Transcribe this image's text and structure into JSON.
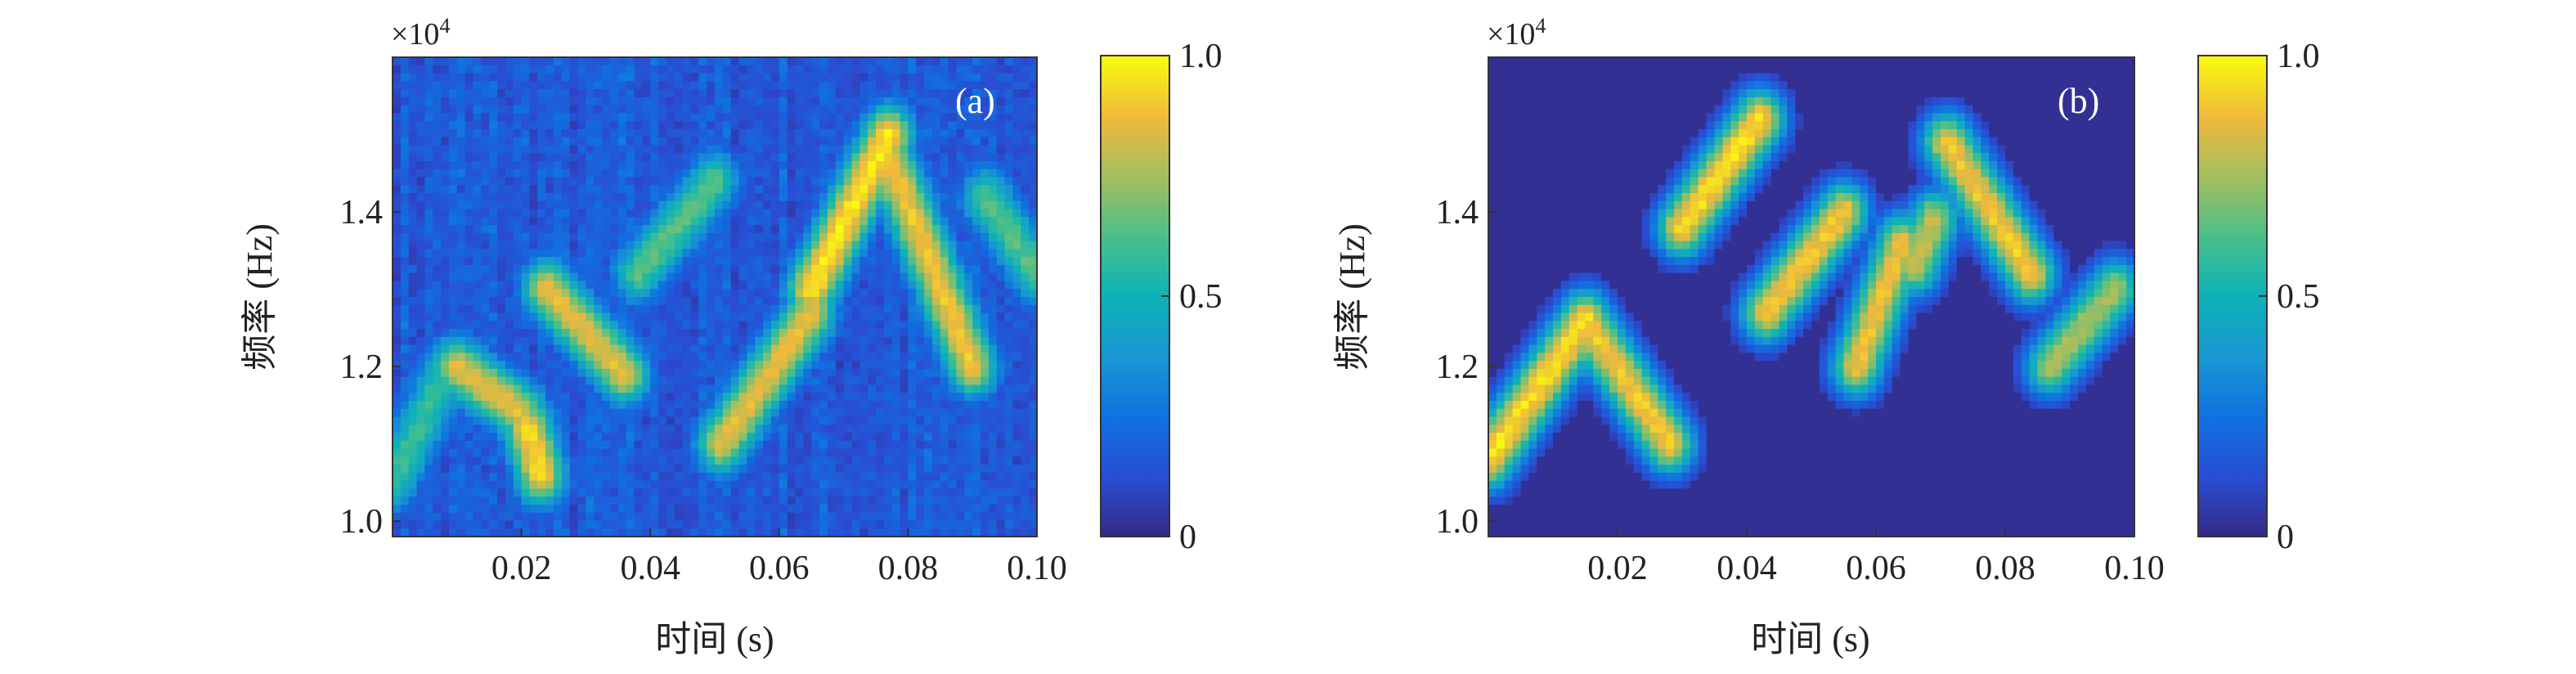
{
  "chart_data": [
    {
      "type": "heatmap",
      "panel_label": "(a)",
      "xlabel": "时间 (s)",
      "ylabel": "频率 (Hz)",
      "y_exponent_label": "×10",
      "y_exponent_power": "4",
      "xlim": [
        0.0,
        0.1
      ],
      "ylim": [
        0.98,
        1.6
      ],
      "x_ticks": [
        0.02,
        0.04,
        0.06,
        0.08,
        0.1
      ],
      "x_tick_labels": [
        "0.02",
        "0.04",
        "0.06",
        "0.08",
        "0.10"
      ],
      "y_ticks": [
        1.0,
        1.2,
        1.4
      ],
      "y_tick_labels": [
        "1.0",
        "1.2",
        "1.4"
      ],
      "colorbar": {
        "range": [
          0,
          1
        ],
        "ticks": [
          0,
          0.5,
          1.0
        ],
        "tick_labels": [
          "0",
          "0.5",
          "1.0"
        ],
        "colormap": "parula"
      },
      "noise_level": 0.24,
      "ridges": [
        {
          "t0": 0.0,
          "f0": 1.05,
          "t1": 0.008,
          "f1": 1.19,
          "amp": 0.55
        },
        {
          "t0": 0.01,
          "f0": 1.2,
          "t1": 0.02,
          "f1": 1.14,
          "amp": 0.82
        },
        {
          "t0": 0.021,
          "f0": 1.12,
          "t1": 0.023,
          "f1": 1.06,
          "amp": 0.9
        },
        {
          "t0": 0.024,
          "f0": 1.3,
          "t1": 0.036,
          "f1": 1.19,
          "amp": 0.82
        },
        {
          "t0": 0.038,
          "f0": 1.32,
          "t1": 0.05,
          "f1": 1.44,
          "amp": 0.6
        },
        {
          "t0": 0.051,
          "f0": 1.1,
          "t1": 0.065,
          "f1": 1.27,
          "amp": 0.82
        },
        {
          "t0": 0.065,
          "f0": 1.3,
          "t1": 0.077,
          "f1": 1.5,
          "amp": 0.93
        },
        {
          "t0": 0.077,
          "f0": 1.47,
          "t1": 0.09,
          "f1": 1.2,
          "amp": 0.85
        },
        {
          "t0": 0.092,
          "f0": 1.42,
          "t1": 0.1,
          "f1": 1.32,
          "amp": 0.6
        }
      ]
    },
    {
      "type": "heatmap",
      "panel_label": "(b)",
      "xlabel": "时间 (s)",
      "ylabel": "频率 (Hz)",
      "y_exponent_label": "×10",
      "y_exponent_power": "4",
      "xlim": [
        0.0,
        0.1
      ],
      "ylim": [
        0.98,
        1.6
      ],
      "x_ticks": [
        0.02,
        0.04,
        0.06,
        0.08,
        0.1
      ],
      "x_tick_labels": [
        "0.02",
        "0.04",
        "0.06",
        "0.08",
        "0.10"
      ],
      "y_ticks": [
        1.0,
        1.2,
        1.4
      ],
      "y_tick_labels": [
        "1.0",
        "1.2",
        "1.4"
      ],
      "colorbar": {
        "range": [
          0,
          1
        ],
        "ticks": [
          0,
          0.5,
          1.0
        ],
        "tick_labels": [
          "0",
          "0.5",
          "1.0"
        ],
        "colormap": "parula"
      },
      "noise_level": 0.0,
      "ridges": [
        {
          "t0": 0.0,
          "f0": 1.08,
          "t1": 0.015,
          "f1": 1.26,
          "amp": 1.0
        },
        {
          "t0": 0.015,
          "f0": 1.26,
          "t1": 0.028,
          "f1": 1.1,
          "amp": 0.95
        },
        {
          "t0": 0.03,
          "f0": 1.38,
          "t1": 0.042,
          "f1": 1.52,
          "amp": 1.0
        },
        {
          "t0": 0.043,
          "f0": 1.27,
          "t1": 0.055,
          "f1": 1.4,
          "amp": 0.95
        },
        {
          "t0": 0.057,
          "f0": 1.2,
          "t1": 0.064,
          "f1": 1.36,
          "amp": 0.92
        },
        {
          "t0": 0.066,
          "f0": 1.33,
          "t1": 0.069,
          "f1": 1.39,
          "amp": 0.85
        },
        {
          "t0": 0.071,
          "f0": 1.49,
          "t1": 0.084,
          "f1": 1.32,
          "amp": 0.95
        },
        {
          "t0": 0.087,
          "f0": 1.2,
          "t1": 0.097,
          "f1": 1.3,
          "amp": 0.8
        }
      ]
    }
  ]
}
